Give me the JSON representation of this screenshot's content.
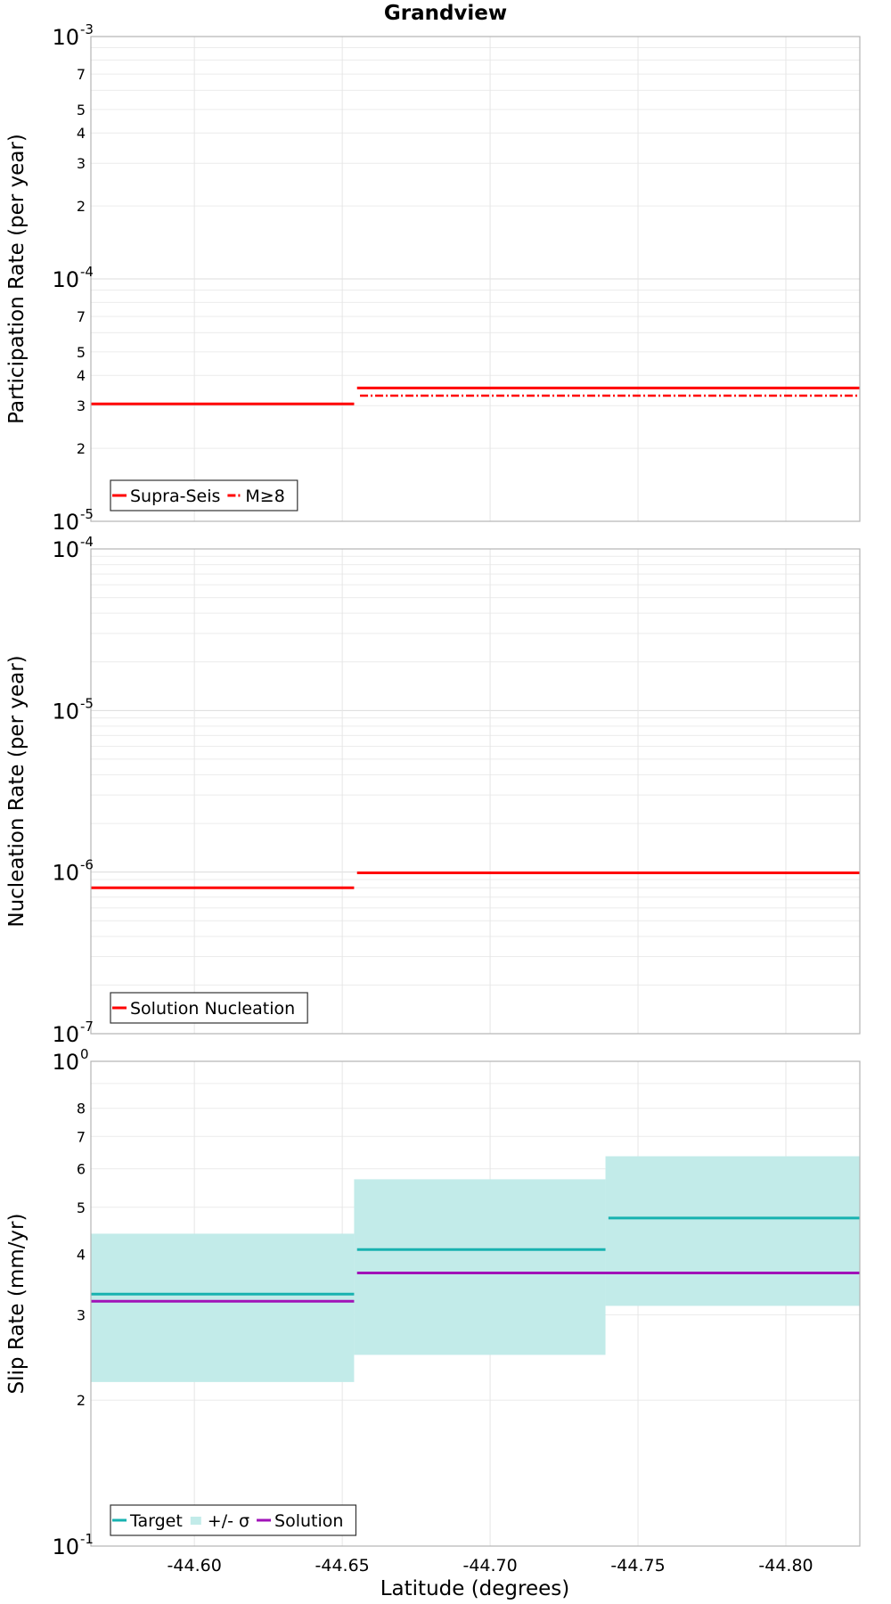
{
  "title": "Grandview",
  "x_axis": {
    "label": "Latitude (degrees)",
    "reversed": true,
    "lim": [
      -44.565,
      -44.825
    ],
    "ticks": [
      -44.6,
      -44.65,
      -44.7,
      -44.75,
      -44.8
    ],
    "tick_labels": [
      "-44.60",
      "-44.65",
      "-44.70",
      "-44.75",
      "-44.80"
    ]
  },
  "chart_data": [
    {
      "type": "line",
      "panel": "participation",
      "ylabel": "Participation Rate (per year)",
      "yscale": "log",
      "ylim": [
        1e-05,
        0.001
      ],
      "major_ticks": [
        {
          "value": 0.001,
          "base": "10",
          "exp": "-3"
        },
        {
          "value": 0.0001,
          "base": "10",
          "exp": "-4"
        },
        {
          "value": 1e-05,
          "base": "10",
          "exp": "-5"
        }
      ],
      "minor_ticks": [
        {
          "value": 0.0007,
          "label": "7"
        },
        {
          "value": 0.0005,
          "label": "5"
        },
        {
          "value": 0.0004,
          "label": "4"
        },
        {
          "value": 0.0003,
          "label": "3"
        },
        {
          "value": 0.0002,
          "label": "2"
        },
        {
          "value": 7e-05,
          "label": "7"
        },
        {
          "value": 5e-05,
          "label": "5"
        },
        {
          "value": 4e-05,
          "label": "4"
        },
        {
          "value": 3e-05,
          "label": "3"
        },
        {
          "value": 2e-05,
          "label": "2"
        }
      ],
      "series": [
        {
          "name": "Supra-Seis",
          "color": "#ff0000",
          "style": "solid",
          "segments": [
            {
              "x0": -44.565,
              "x1": -44.654,
              "y": 3.05e-05
            },
            {
              "x0": -44.655,
              "x1": -44.825,
              "y": 3.55e-05
            }
          ]
        },
        {
          "name": "M≥8",
          "color": "#ff0000",
          "style": "dashdot",
          "segments": [
            {
              "x0": -44.565,
              "x1": -44.654,
              "y": 3.05e-05
            },
            {
              "x0": -44.656,
              "x1": -44.825,
              "y": 3.3e-05
            }
          ]
        }
      ],
      "legend": {
        "position": "bottom-left"
      }
    },
    {
      "type": "line",
      "panel": "nucleation",
      "ylabel": "Nucleation Rate (per year)",
      "yscale": "log",
      "ylim": [
        1e-07,
        0.0001
      ],
      "major_ticks": [
        {
          "value": 0.0001,
          "base": "10",
          "exp": "-4"
        },
        {
          "value": 1e-05,
          "base": "10",
          "exp": "-5"
        },
        {
          "value": 1e-06,
          "base": "10",
          "exp": "-6"
        },
        {
          "value": 1e-07,
          "base": "10",
          "exp": "-7"
        }
      ],
      "minor_ticks": [],
      "series": [
        {
          "name": "Solution Nucleation",
          "color": "#ff0000",
          "style": "solid",
          "segments": [
            {
              "x0": -44.565,
              "x1": -44.654,
              "y": 8e-07
            },
            {
              "x0": -44.655,
              "x1": -44.825,
              "y": 9.9e-07
            }
          ]
        }
      ],
      "legend": {
        "position": "bottom-left"
      }
    },
    {
      "type": "area",
      "panel": "slip",
      "ylabel": "Slip Rate (mm/yr)",
      "yscale": "log",
      "ylim": [
        0.1,
        1
      ],
      "major_ticks": [
        {
          "value": 1,
          "base": "10",
          "exp": "0"
        },
        {
          "value": 0.1,
          "base": "10",
          "exp": "-1"
        }
      ],
      "minor_ticks": [
        {
          "value": 0.8,
          "label": "8"
        },
        {
          "value": 0.7,
          "label": "7"
        },
        {
          "value": 0.6,
          "label": "6"
        },
        {
          "value": 0.5,
          "label": "5"
        },
        {
          "value": 0.4,
          "label": "4"
        },
        {
          "value": 0.3,
          "label": "3"
        },
        {
          "value": 0.2,
          "label": "2"
        }
      ],
      "bands": [
        {
          "name": "+/- σ",
          "color": "#c2ebe9",
          "segments": [
            {
              "x0": -44.565,
              "x1": -44.654,
              "y0": 0.218,
              "y1": 0.441
            },
            {
              "x0": -44.654,
              "x1": -44.739,
              "y0": 0.248,
              "y1": 0.571
            },
            {
              "x0": -44.739,
              "x1": -44.825,
              "y0": 0.313,
              "y1": 0.637
            }
          ]
        }
      ],
      "series": [
        {
          "name": "Target",
          "color": "#17b2b0",
          "style": "solid",
          "segments": [
            {
              "x0": -44.565,
              "x1": -44.654,
              "y": 0.331
            },
            {
              "x0": -44.655,
              "x1": -44.739,
              "y": 0.409
            },
            {
              "x0": -44.74,
              "x1": -44.825,
              "y": 0.475
            }
          ]
        },
        {
          "name": "Solution",
          "color": "#a012b8",
          "style": "solid",
          "segments": [
            {
              "x0": -44.565,
              "x1": -44.654,
              "y": 0.32
            },
            {
              "x0": -44.655,
              "x1": -44.825,
              "y": 0.366
            }
          ]
        }
      ],
      "legend": {
        "position": "bottom-left"
      }
    }
  ]
}
